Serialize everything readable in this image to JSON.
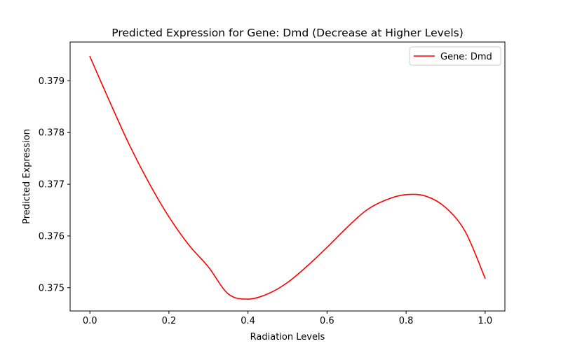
{
  "chart_data": {
    "type": "line",
    "title": "Predicted Expression for Gene: Dmd (Decrease at Higher Levels)",
    "xlabel": "Radiation Levels",
    "ylabel": "Predicted Expression",
    "xlim": [
      -0.05,
      1.05
    ],
    "ylim": [
      0.37455,
      0.37975
    ],
    "xticks": [
      0.0,
      0.2,
      0.4,
      0.6,
      0.8,
      1.0
    ],
    "xtick_labels": [
      "0.0",
      "0.2",
      "0.4",
      "0.6",
      "0.8",
      "1.0"
    ],
    "yticks": [
      0.375,
      0.376,
      0.377,
      0.378,
      0.379
    ],
    "ytick_labels": [
      "0.375",
      "0.376",
      "0.377",
      "0.378",
      "0.379"
    ],
    "grid": false,
    "legend_position": "top-right",
    "series": [
      {
        "name": "Gene: Dmd",
        "color": "#ff0000",
        "x": [
          0.0,
          0.05,
          0.1,
          0.15,
          0.2,
          0.25,
          0.3,
          0.35,
          0.4,
          0.45,
          0.5,
          0.55,
          0.6,
          0.65,
          0.7,
          0.75,
          0.8,
          0.85,
          0.9,
          0.95,
          1.0
        ],
        "y": [
          0.37947,
          0.3786,
          0.37776,
          0.37702,
          0.37637,
          0.37583,
          0.3754,
          0.37488,
          0.37478,
          0.37488,
          0.3751,
          0.37542,
          0.37578,
          0.37616,
          0.3765,
          0.3767,
          0.3768,
          0.37677,
          0.37655,
          0.37608,
          0.37518
        ]
      }
    ]
  }
}
